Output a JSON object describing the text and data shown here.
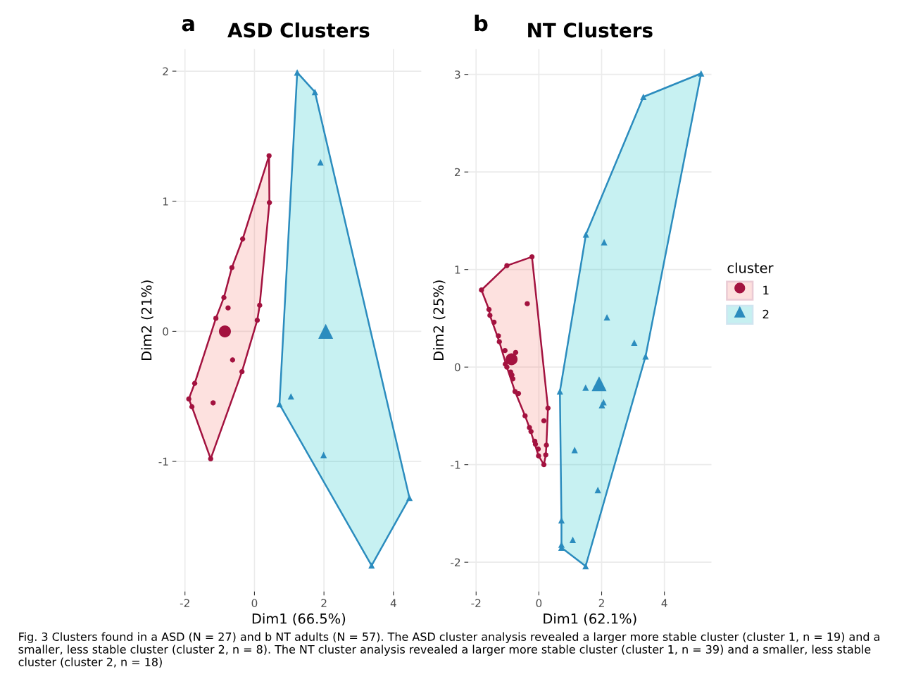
{
  "chart_data": [
    {
      "type": "scatter",
      "title": "ASD Clusters",
      "xlabel": "Dim1 (66.5%)",
      "ylabel": "Dim2 (21%)",
      "xlim": [
        -2.25,
        4.8
      ],
      "ylim": [
        -2.0,
        2.17
      ],
      "xticks": [
        -2,
        0,
        2,
        4
      ],
      "yticks": [
        -1,
        0,
        1,
        2
      ],
      "grid": true,
      "legend": false,
      "annotations": [
        "a",
        "Fig. 3 Clusters found in a ASD (N = 27) and b NT adults (N = 57). The ASD cluster analysis revealed a larger more stable cluster (cluster 1, n = 19) and a smaller, less stable cluster (cluster 2, n = 8). The NT cluster analysis revealed a larger more stable cluster (cluster 1, n = 39) and a smaller, less stable cluster (cluster 2, n = 18)"
      ],
      "series": [
        {
          "type": "area",
          "color": "#f8766d",
          "x": [
            0.42,
            0.43,
            0.15,
            0.08,
            -0.36,
            -1.26,
            -1.8,
            -1.89,
            -1.72,
            -1.11,
            -0.88,
            -0.65,
            -0.34
          ],
          "values": [
            1.35,
            0.99,
            0.2,
            0.085,
            -0.31,
            -0.98,
            -0.58,
            -0.52,
            -0.4,
            0.1,
            0.26,
            0.49,
            0.71
          ]
        },
        {
          "type": "area",
          "color": "#00bfc4",
          "x": [
            1.23,
            1.74,
            4.46,
            3.37,
            0.72
          ],
          "values": [
            1.99,
            1.84,
            -1.28,
            -1.8,
            -0.56
          ]
        },
        {
          "marker": "circle",
          "color": "#a3123f",
          "x": [
            0.42,
            0.43,
            -0.34,
            -0.65,
            -0.88,
            -0.76,
            0.15,
            -1.11,
            0.08,
            -0.63,
            -0.36,
            -1.72,
            -1.89,
            -1.8,
            -1.19,
            -1.26
          ],
          "values": [
            1.35,
            0.99,
            0.71,
            0.49,
            0.26,
            0.18,
            0.2,
            0.1,
            0.085,
            -0.22,
            -0.31,
            -0.4,
            -0.52,
            -0.58,
            -0.55,
            -0.98
          ]
        },
        {
          "marker": "triangle",
          "color": "#2b8cbe",
          "x": [
            1.23,
            1.74,
            1.9,
            1.05,
            0.72,
            1.99,
            4.46,
            3.37
          ],
          "values": [
            1.99,
            1.84,
            1.3,
            -0.5,
            -0.56,
            -0.95,
            -1.28,
            -1.8
          ]
        },
        {
          "type": "bubble",
          "marker": "circle",
          "color": "#a3123f",
          "x": [
            -0.85
          ],
          "values": [
            0.0
          ],
          "sizes": [
            1
          ]
        },
        {
          "type": "bubble",
          "marker": "triangle",
          "color": "#2b8cbe",
          "x": [
            2.05
          ],
          "values": [
            0.0
          ],
          "sizes": [
            1
          ]
        }
      ]
    },
    {
      "type": "scatter",
      "title": "NT Clusters",
      "xlabel": "Dim1 (62.1%)",
      "ylabel": "Dim2 (25%)",
      "legend_title": "cluster",
      "xlim": [
        -2.25,
        5.5
      ],
      "ylim": [
        -2.3,
        3.26
      ],
      "xticks": [
        -2,
        0,
        2,
        4
      ],
      "yticks": [
        -2,
        -1,
        0,
        1,
        2,
        3
      ],
      "grid": true,
      "legend": "right",
      "annotations": [
        "b"
      ],
      "series": [
        {
          "type": "area",
          "color": "#f8766d",
          "x": [
            -1.83,
            -1.02,
            -0.22,
            0.29,
            0.24,
            0.22,
            0.16,
            -0.01,
            -0.3,
            -0.44,
            -0.76,
            -1.02,
            -1.26,
            -1.56,
            -1.59
          ],
          "values": [
            0.79,
            1.04,
            1.13,
            -0.42,
            -0.8,
            -0.9,
            -1.0,
            -0.91,
            -0.62,
            -0.5,
            -0.25,
            0.0,
            0.26,
            0.53,
            0.59
          ]
        },
        {
          "type": "area",
          "color": "#00bfc4",
          "x": [
            1.5,
            3.33,
            5.17,
            3.4,
            1.49,
            0.72,
            0.72,
            0.72,
            0.67
          ],
          "values": [
            1.36,
            2.77,
            3.01,
            0.11,
            -2.04,
            -1.85,
            -1.82,
            -1.57,
            -0.25
          ]
        },
        {
          "name": "1",
          "marker": "circle",
          "color": "#a3123f",
          "x": [
            -1.83,
            -1.02,
            -0.22,
            -0.37,
            -1.59,
            -1.56,
            -1.43,
            -1.29,
            -1.26,
            -1.08,
            -0.74,
            -1.07,
            -1.02,
            -0.9,
            -0.86,
            -0.83,
            -0.76,
            -0.65,
            0.29,
            -0.44,
            0.16,
            -0.3,
            -0.25,
            -0.13,
            -0.11,
            -0.02,
            0.24,
            0.22,
            -0.01,
            0.16
          ],
          "values": [
            0.79,
            1.04,
            1.13,
            0.65,
            0.59,
            0.53,
            0.46,
            0.32,
            0.26,
            0.17,
            0.15,
            0.03,
            0.0,
            -0.05,
            -0.08,
            -0.12,
            -0.25,
            -0.27,
            -0.42,
            -0.5,
            -0.55,
            -0.62,
            -0.66,
            -0.76,
            -0.79,
            -0.84,
            -0.8,
            -0.9,
            -0.91,
            -1.0
          ]
        },
        {
          "name": "2",
          "marker": "triangle",
          "color": "#2b8cbe",
          "x": [
            5.17,
            3.33,
            1.5,
            2.08,
            2.17,
            3.04,
            3.4,
            1.49,
            0.67,
            2.06,
            2.01,
            1.14,
            1.88,
            0.72,
            1.08,
            0.72,
            0.72,
            1.49
          ],
          "values": [
            3.01,
            2.77,
            1.36,
            1.28,
            0.51,
            0.25,
            0.11,
            -0.21,
            -0.25,
            -0.36,
            -0.39,
            -0.85,
            -1.26,
            -1.57,
            -1.77,
            -1.82,
            -1.85,
            -2.04
          ]
        },
        {
          "type": "bubble",
          "marker": "circle",
          "color": "#a3123f",
          "x": [
            -0.87
          ],
          "values": [
            0.08
          ],
          "sizes": [
            1
          ]
        },
        {
          "type": "bubble",
          "marker": "triangle",
          "color": "#2b8cbe",
          "x": [
            1.92
          ],
          "values": [
            -0.17
          ],
          "sizes": [
            1
          ]
        }
      ]
    }
  ]
}
